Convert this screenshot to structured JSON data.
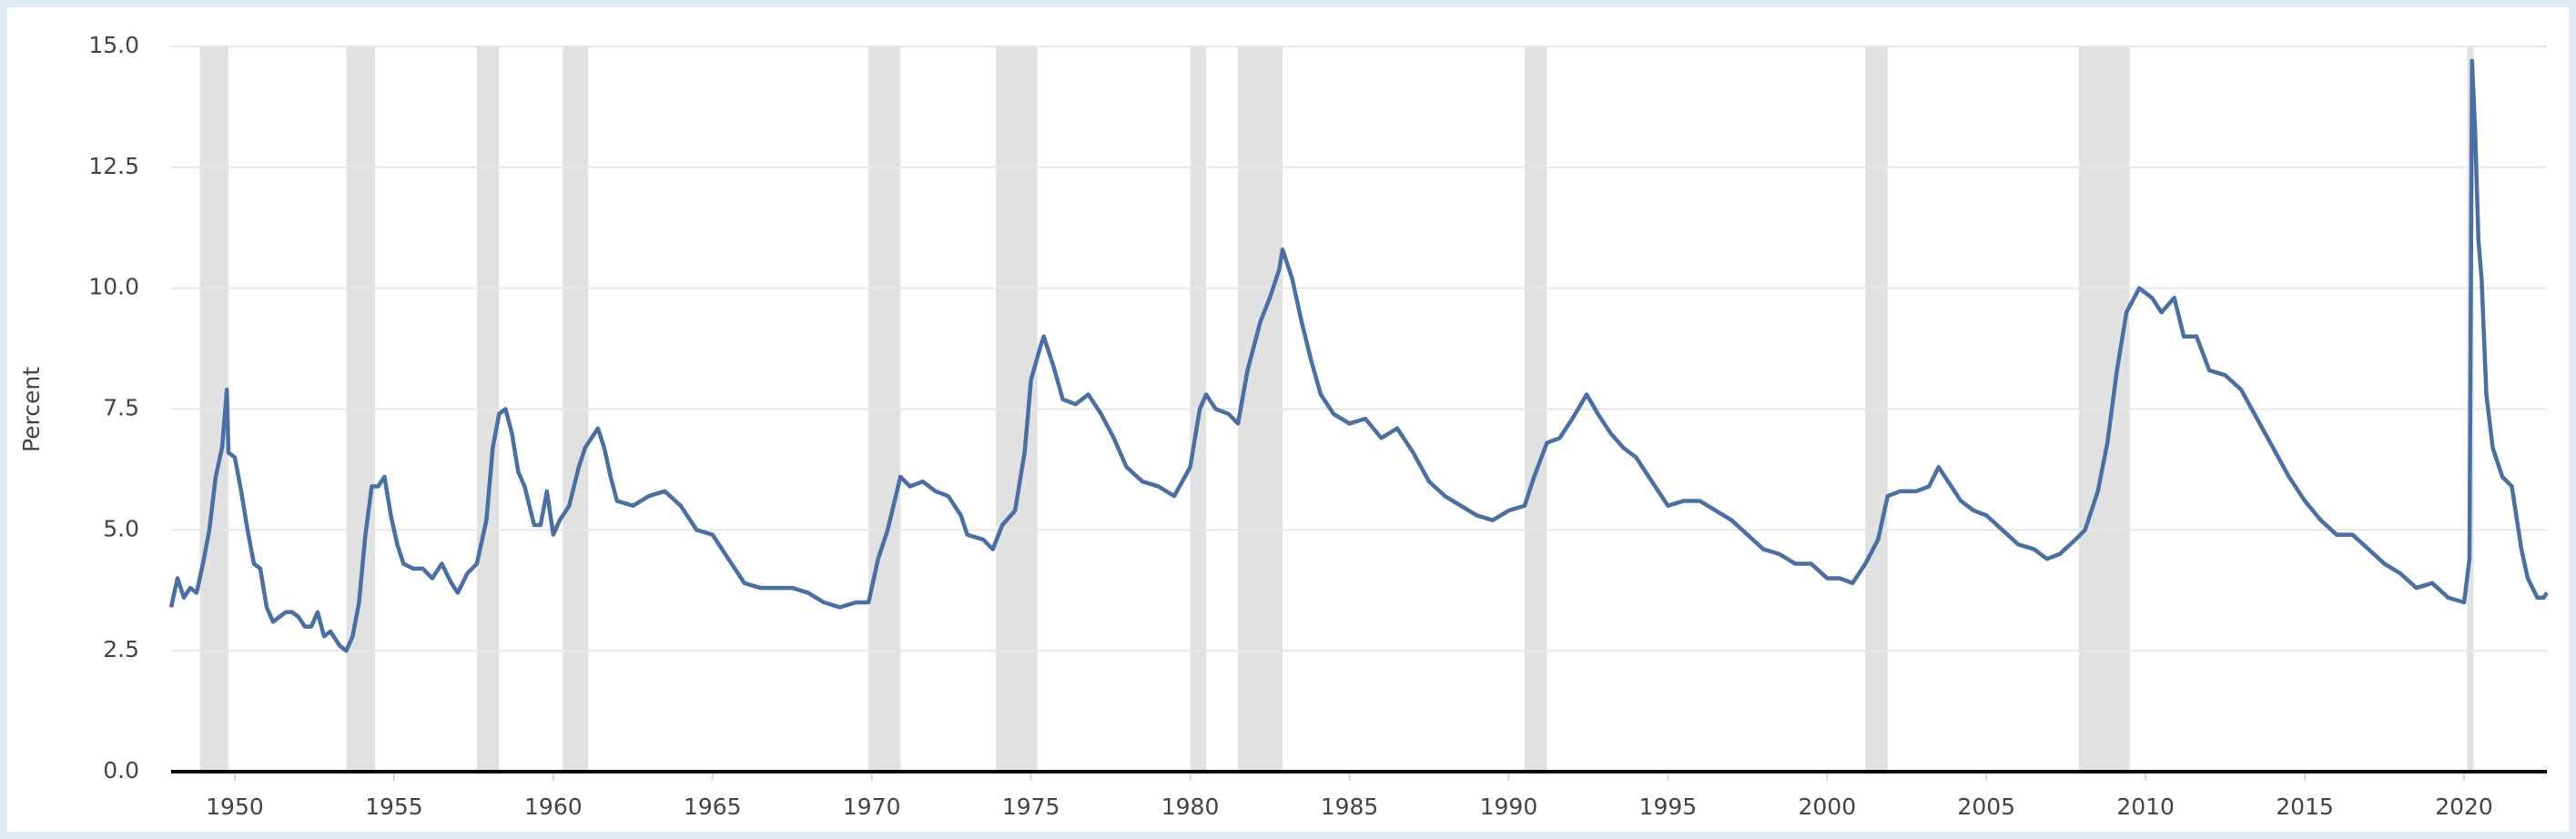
{
  "chart_data": {
    "type": "line",
    "y_label": "Percent",
    "color": "#4a6fa5",
    "recession_color": "#e1e1e1",
    "grid": true,
    "xlim": [
      1948,
      2022.6
    ],
    "ylim": [
      0,
      15
    ],
    "xticks": [
      1950,
      1955,
      1960,
      1965,
      1970,
      1975,
      1980,
      1985,
      1990,
      1995,
      2000,
      2005,
      2010,
      2015,
      2020
    ],
    "yticks": [
      {
        "value": 0,
        "label": "0.0"
      },
      {
        "value": 2.5,
        "label": "2.5"
      },
      {
        "value": 5,
        "label": "5.0"
      },
      {
        "value": 7.5,
        "label": "7.5"
      },
      {
        "value": 10,
        "label": "10.0"
      },
      {
        "value": 12.5,
        "label": "12.5"
      },
      {
        "value": 15,
        "label": "15.0"
      }
    ],
    "recessions": [
      [
        1948.9,
        1949.8
      ],
      [
        1953.5,
        1954.4
      ],
      [
        1957.6,
        1958.3
      ],
      [
        1960.3,
        1961.1
      ],
      [
        1969.9,
        1970.9
      ],
      [
        1973.9,
        1975.2
      ],
      [
        1980.0,
        1980.5
      ],
      [
        1981.5,
        1982.9
      ],
      [
        1990.5,
        1991.2
      ],
      [
        2001.2,
        2001.9
      ],
      [
        2007.9,
        2009.5
      ],
      [
        2020.1,
        2020.3
      ]
    ],
    "x": [
      1948.0,
      1948.2,
      1948.4,
      1948.6,
      1948.8,
      1949.0,
      1949.2,
      1949.4,
      1949.6,
      1949.75,
      1949.8,
      1950.0,
      1950.2,
      1950.4,
      1950.6,
      1950.8,
      1951.0,
      1951.2,
      1951.4,
      1951.6,
      1951.8,
      1952.0,
      1952.2,
      1952.4,
      1952.6,
      1952.8,
      1953.0,
      1953.3,
      1953.5,
      1953.7,
      1953.9,
      1954.1,
      1954.3,
      1954.5,
      1954.7,
      1954.9,
      1955.1,
      1955.3,
      1955.6,
      1955.9,
      1956.2,
      1956.5,
      1956.8,
      1957.0,
      1957.3,
      1957.6,
      1957.9,
      1958.1,
      1958.3,
      1958.5,
      1958.7,
      1958.9,
      1959.1,
      1959.4,
      1959.6,
      1959.8,
      1960.0,
      1960.2,
      1960.5,
      1960.8,
      1961.0,
      1961.2,
      1961.4,
      1961.6,
      1961.8,
      1962.0,
      1962.5,
      1963.0,
      1963.5,
      1964.0,
      1964.5,
      1965.0,
      1965.5,
      1966.0,
      1966.5,
      1967.0,
      1967.5,
      1968.0,
      1968.5,
      1969.0,
      1969.5,
      1969.9,
      1970.2,
      1970.5,
      1970.9,
      1971.2,
      1971.6,
      1972.0,
      1972.4,
      1972.8,
      1973.0,
      1973.5,
      1973.8,
      1974.1,
      1974.5,
      1974.8,
      1975.0,
      1975.3,
      1975.4,
      1975.7,
      1976.0,
      1976.4,
      1976.8,
      1977.2,
      1977.6,
      1978.0,
      1978.5,
      1979.0,
      1979.5,
      1980.0,
      1980.3,
      1980.5,
      1980.8,
      1981.2,
      1981.5,
      1981.8,
      1982.2,
      1982.5,
      1982.8,
      1982.9,
      1983.2,
      1983.5,
      1983.8,
      1984.1,
      1984.5,
      1985.0,
      1985.5,
      1986.0,
      1986.5,
      1987.0,
      1987.5,
      1988.0,
      1988.5,
      1989.0,
      1989.5,
      1990.0,
      1990.5,
      1990.8,
      1991.2,
      1991.6,
      1992.0,
      1992.45,
      1992.8,
      1993.2,
      1993.6,
      1994.0,
      1994.5,
      1995.0,
      1995.5,
      1996.0,
      1996.5,
      1997.0,
      1997.5,
      1998.0,
      1998.5,
      1999.0,
      1999.5,
      2000.0,
      2000.4,
      2000.8,
      2001.2,
      2001.6,
      2001.9,
      2002.3,
      2002.8,
      2003.2,
      2003.5,
      2003.8,
      2004.2,
      2004.6,
      2005.0,
      2005.5,
      2006.0,
      2006.5,
      2006.9,
      2007.3,
      2007.8,
      2008.1,
      2008.5,
      2008.8,
      2009.1,
      2009.4,
      2009.8,
      2010.2,
      2010.5,
      2010.9,
      2011.2,
      2011.6,
      2012.0,
      2012.5,
      2013.0,
      2013.5,
      2014.0,
      2014.5,
      2015.0,
      2015.5,
      2016.0,
      2016.5,
      2017.0,
      2017.5,
      2018.0,
      2018.5,
      2019.0,
      2019.5,
      2020.0,
      2020.17,
      2020.25,
      2020.35,
      2020.45,
      2020.55,
      2020.7,
      2020.9,
      2021.2,
      2021.5,
      2021.8,
      2022.0,
      2022.3,
      2022.5,
      2022.6
    ],
    "values": [
      3.4,
      4.0,
      3.6,
      3.8,
      3.7,
      4.3,
      5.0,
      6.1,
      6.7,
      7.9,
      6.6,
      6.5,
      5.8,
      5.0,
      4.3,
      4.2,
      3.4,
      3.1,
      3.2,
      3.3,
      3.3,
      3.2,
      3.0,
      3.0,
      3.3,
      2.8,
      2.9,
      2.6,
      2.5,
      2.8,
      3.5,
      4.9,
      5.9,
      5.9,
      6.1,
      5.3,
      4.7,
      4.3,
      4.2,
      4.2,
      4.0,
      4.3,
      3.9,
      3.7,
      4.1,
      4.3,
      5.2,
      6.7,
      7.4,
      7.5,
      7.0,
      6.2,
      5.9,
      5.1,
      5.1,
      5.8,
      4.9,
      5.2,
      5.5,
      6.3,
      6.7,
      6.9,
      7.1,
      6.7,
      6.1,
      5.6,
      5.5,
      5.7,
      5.8,
      5.5,
      5.0,
      4.9,
      4.4,
      3.9,
      3.8,
      3.8,
      3.8,
      3.7,
      3.5,
      3.4,
      3.5,
      3.5,
      4.4,
      5.0,
      6.1,
      5.9,
      6.0,
      5.8,
      5.7,
      5.3,
      4.9,
      4.8,
      4.6,
      5.1,
      5.4,
      6.6,
      8.1,
      8.8,
      9.0,
      8.4,
      7.7,
      7.6,
      7.8,
      7.4,
      6.9,
      6.3,
      6.0,
      5.9,
      5.7,
      6.3,
      7.5,
      7.8,
      7.5,
      7.4,
      7.2,
      8.3,
      9.3,
      9.8,
      10.4,
      10.8,
      10.2,
      9.3,
      8.5,
      7.8,
      7.4,
      7.2,
      7.3,
      6.9,
      7.1,
      6.6,
      6.0,
      5.7,
      5.5,
      5.3,
      5.2,
      5.4,
      5.5,
      6.1,
      6.8,
      6.9,
      7.3,
      7.8,
      7.4,
      7.0,
      6.7,
      6.5,
      6.0,
      5.5,
      5.6,
      5.6,
      5.4,
      5.2,
      4.9,
      4.6,
      4.5,
      4.3,
      4.3,
      4.0,
      4.0,
      3.9,
      4.3,
      4.8,
      5.7,
      5.8,
      5.8,
      5.9,
      6.3,
      6.0,
      5.6,
      5.4,
      5.3,
      5.0,
      4.7,
      4.6,
      4.4,
      4.5,
      4.8,
      5.0,
      5.8,
      6.8,
      8.3,
      9.5,
      10.0,
      9.8,
      9.5,
      9.8,
      9.0,
      9.0,
      8.3,
      8.2,
      7.9,
      7.3,
      6.7,
      6.1,
      5.6,
      5.2,
      4.9,
      4.9,
      4.6,
      4.3,
      4.1,
      3.8,
      3.9,
      3.6,
      3.5,
      4.4,
      14.7,
      13.2,
      11.0,
      10.2,
      7.8,
      6.7,
      6.1,
      5.9,
      4.6,
      4.0,
      3.6,
      3.6,
      3.7
    ]
  }
}
